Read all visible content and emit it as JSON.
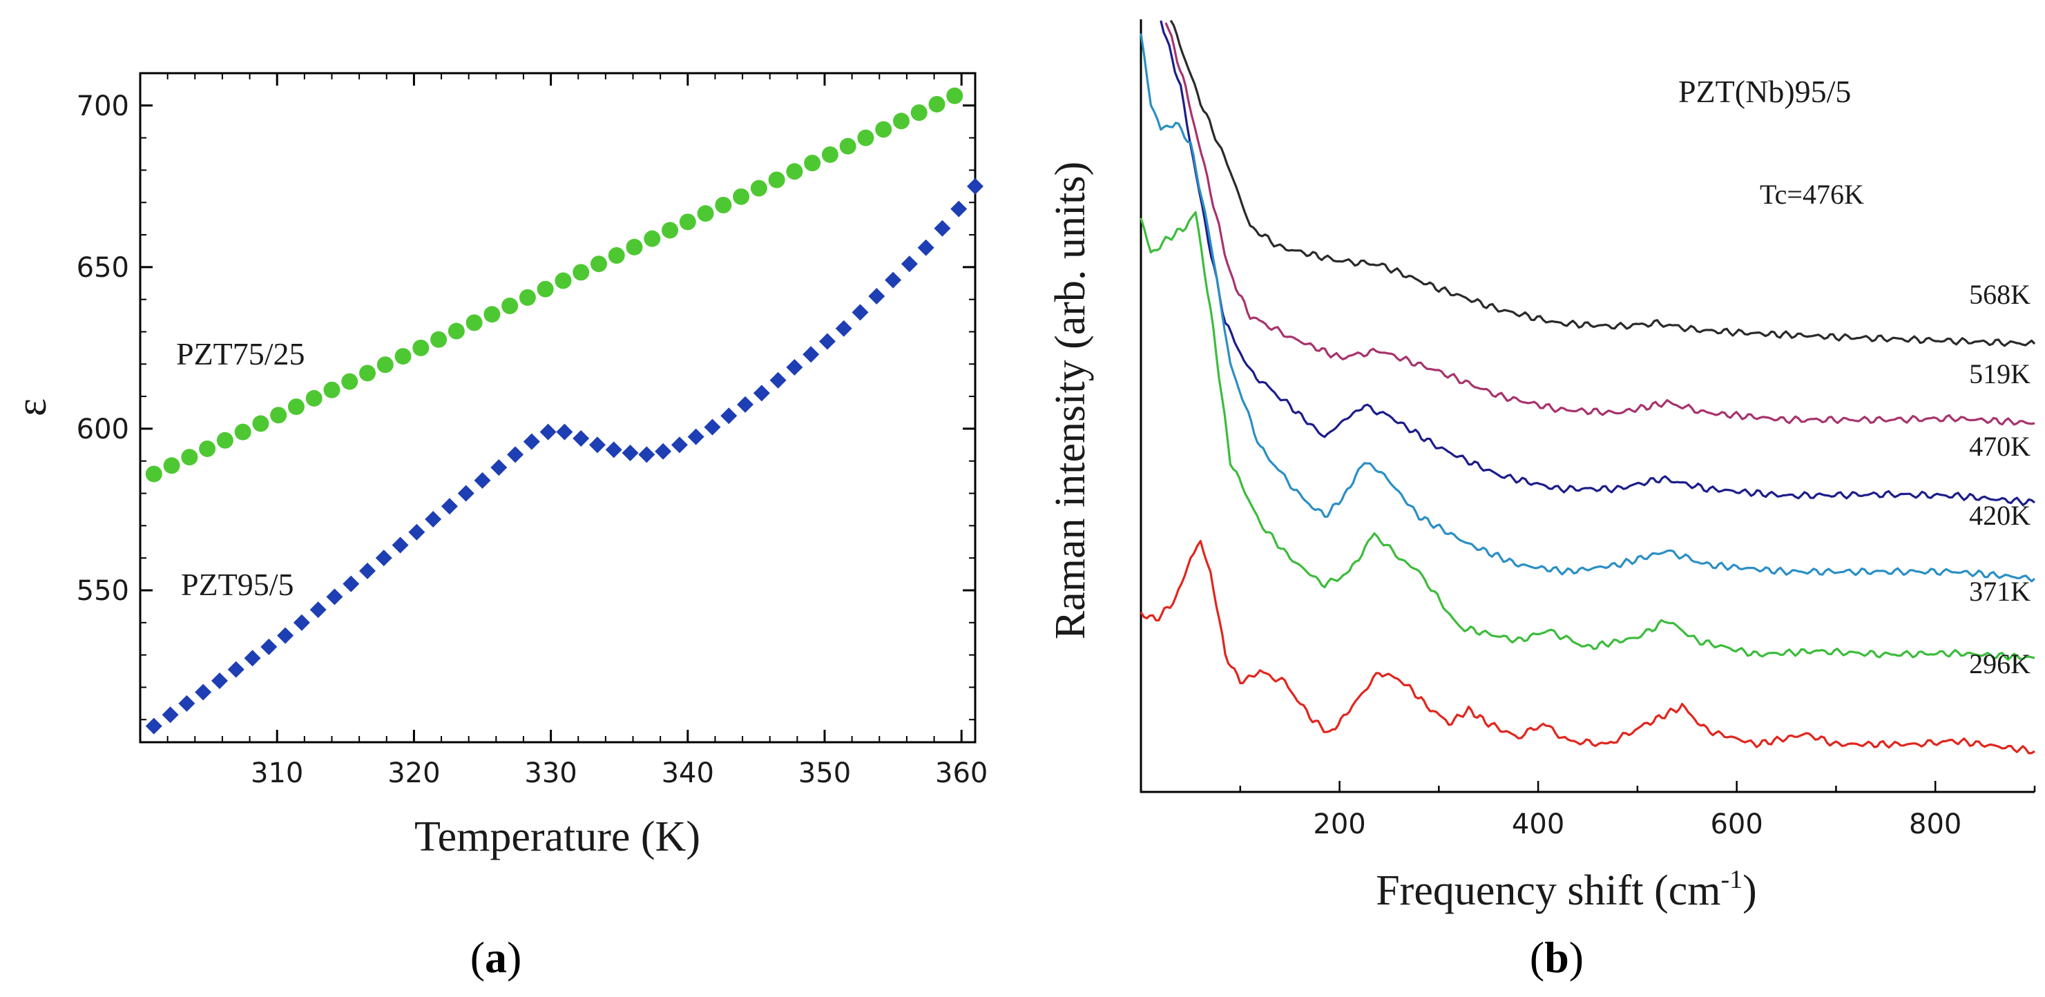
{
  "chart_data": [
    {
      "panel": "(a)",
      "panel_letter": "a",
      "type": "scatter",
      "xlabel": "Temperature (K)",
      "ylabel": "ε",
      "xlim": [
        300,
        361
      ],
      "ylim": [
        503,
        710
      ],
      "xticks": [
        310,
        320,
        330,
        340,
        350,
        360
      ],
      "yticks": [
        550,
        600,
        650,
        700
      ],
      "series": [
        {
          "name": "PZT75/25",
          "color": "#4ec832",
          "marker": "circle",
          "points": [
            [
              301,
              586
            ],
            [
              302.3,
              588.6
            ],
            [
              303.6,
              591.2
            ],
            [
              304.9,
              593.8
            ],
            [
              306.2,
              596.4
            ],
            [
              307.5,
              599
            ],
            [
              308.8,
              601.6
            ],
            [
              310.1,
              604.2
            ],
            [
              311.4,
              606.8
            ],
            [
              312.7,
              609.4
            ],
            [
              314,
              612
            ],
            [
              315.3,
              614.6
            ],
            [
              316.6,
              617.2
            ],
            [
              317.9,
              619.8
            ],
            [
              319.2,
              622.4
            ],
            [
              320.5,
              625
            ],
            [
              321.8,
              627.6
            ],
            [
              323.1,
              630.2
            ],
            [
              324.4,
              632.8
            ],
            [
              325.7,
              635.4
            ],
            [
              327,
              638
            ],
            [
              328.3,
              640.6
            ],
            [
              329.6,
              643.2
            ],
            [
              330.9,
              645.8
            ],
            [
              332.2,
              648.4
            ],
            [
              333.5,
              651
            ],
            [
              334.8,
              653.6
            ],
            [
              336.1,
              656.2
            ],
            [
              337.4,
              658.8
            ],
            [
              338.7,
              661.4
            ],
            [
              340,
              664
            ],
            [
              341.3,
              666.6
            ],
            [
              342.6,
              669.2
            ],
            [
              343.9,
              671.8
            ],
            [
              345.2,
              674.4
            ],
            [
              346.5,
              677
            ],
            [
              347.8,
              679.6
            ],
            [
              349.1,
              682.2
            ],
            [
              350.4,
              684.8
            ],
            [
              351.7,
              687.4
            ],
            [
              353,
              690
            ],
            [
              354.3,
              692.6
            ],
            [
              355.6,
              695.2
            ],
            [
              356.9,
              697.8
            ],
            [
              358.2,
              700.4
            ],
            [
              359.5,
              703
            ]
          ]
        },
        {
          "name": "PZT95/5",
          "color": "#1e3eb4",
          "marker": "diamond",
          "points": [
            [
              301,
              508
            ],
            [
              302.2,
              511.5
            ],
            [
              303.4,
              515
            ],
            [
              304.6,
              518.5
            ],
            [
              305.8,
              522
            ],
            [
              307,
              525.5
            ],
            [
              308.2,
              529
            ],
            [
              309.4,
              532.5
            ],
            [
              310.6,
              536
            ],
            [
              311.8,
              540
            ],
            [
              313,
              544
            ],
            [
              314.2,
              548
            ],
            [
              315.4,
              552
            ],
            [
              316.6,
              556
            ],
            [
              317.8,
              560
            ],
            [
              319,
              564
            ],
            [
              320.2,
              568
            ],
            [
              321.4,
              572
            ],
            [
              322.6,
              576
            ],
            [
              323.8,
              580
            ],
            [
              325,
              584
            ],
            [
              326.2,
              588
            ],
            [
              327.4,
              592
            ],
            [
              328.6,
              596
            ],
            [
              329.8,
              599
            ],
            [
              331,
              599
            ],
            [
              332.2,
              597
            ],
            [
              333.4,
              595
            ],
            [
              334.6,
              593.5
            ],
            [
              335.8,
              592.5
            ],
            [
              337,
              592
            ],
            [
              338.2,
              593
            ],
            [
              339.4,
              595
            ],
            [
              340.6,
              597.5
            ],
            [
              341.8,
              600.5
            ],
            [
              343,
              604
            ],
            [
              344.2,
              607.5
            ],
            [
              345.4,
              611
            ],
            [
              346.6,
              615
            ],
            [
              347.8,
              619
            ],
            [
              349,
              623
            ],
            [
              350.2,
              627
            ],
            [
              351.4,
              631
            ],
            [
              352.6,
              636
            ],
            [
              353.8,
              641
            ],
            [
              355,
              646
            ],
            [
              356.2,
              651
            ],
            [
              357.4,
              656
            ],
            [
              358.6,
              662
            ],
            [
              359.8,
              668
            ],
            [
              361,
              675
            ]
          ]
        }
      ],
      "annotations": [
        "PZT75/25",
        "PZT95/5"
      ]
    },
    {
      "panel": "(b)",
      "panel_letter": "b",
      "type": "line",
      "xlabel": "Frequency shift (cm",
      "xlabel_sup": "-1",
      "xlabel_end": ")",
      "ylabel": "Raman intensity (arb. units)",
      "xlim": [
        0,
        900
      ],
      "xticks": [
        200,
        400,
        600,
        800
      ],
      "y_scale": "arbitrary, vertically offset spectra",
      "annotations": [
        "PZT(Nb)95/5",
        "Tc=476K"
      ],
      "series": [
        {
          "name": "568K",
          "color": "#2a2a2a",
          "label_y": 440,
          "points": [
            [
              30,
              0
            ],
            [
              60,
              120
            ],
            [
              90,
              220
            ],
            [
              110,
              300
            ],
            [
              140,
              330
            ],
            [
              200,
              350
            ],
            [
              240,
              355
            ],
            [
              300,
              390
            ],
            [
              360,
              420
            ],
            [
              420,
              440
            ],
            [
              480,
              445
            ],
            [
              520,
              440
            ],
            [
              560,
              450
            ],
            [
              620,
              455
            ],
            [
              700,
              460
            ],
            [
              800,
              465
            ],
            [
              900,
              470
            ]
          ]
        },
        {
          "name": "519K",
          "color": "#a8336e",
          "label_y": 555,
          "points": [
            [
              25,
              0
            ],
            [
              45,
              100
            ],
            [
              70,
              250
            ],
            [
              90,
              370
            ],
            [
              110,
              430
            ],
            [
              150,
              460
            ],
            [
              200,
              490
            ],
            [
              240,
              480
            ],
            [
              300,
              510
            ],
            [
              360,
              545
            ],
            [
              420,
              565
            ],
            [
              480,
              570
            ],
            [
              530,
              555
            ],
            [
              570,
              570
            ],
            [
              650,
              580
            ],
            [
              750,
              580
            ],
            [
              820,
              578
            ],
            [
              900,
              585
            ]
          ]
        },
        {
          "name": "470K",
          "color": "#1c1d8a",
          "label_y": 660,
          "points": [
            [
              20,
              0
            ],
            [
              40,
              100
            ],
            [
              65,
              300
            ],
            [
              85,
              440
            ],
            [
              110,
              510
            ],
            [
              150,
              560
            ],
            [
              185,
              605
            ],
            [
              205,
              580
            ],
            [
              225,
              560
            ],
            [
              250,
              575
            ],
            [
              300,
              620
            ],
            [
              360,
              660
            ],
            [
              420,
              680
            ],
            [
              480,
              680
            ],
            [
              525,
              665
            ],
            [
              570,
              680
            ],
            [
              650,
              690
            ],
            [
              750,
              688
            ],
            [
              820,
              690
            ],
            [
              900,
              700
            ]
          ]
        },
        {
          "name": "420K",
          "color": "#2a8fc4",
          "label_y": 760,
          "points": [
            [
              0,
              20
            ],
            [
              10,
              120
            ],
            [
              20,
              160
            ],
            [
              35,
              150
            ],
            [
              50,
              180
            ],
            [
              70,
              320
            ],
            [
              90,
              500
            ],
            [
              120,
              620
            ],
            [
              160,
              690
            ],
            [
              185,
              720
            ],
            [
              205,
              690
            ],
            [
              225,
              640
            ],
            [
              245,
              660
            ],
            [
              280,
              720
            ],
            [
              330,
              760
            ],
            [
              380,
              790
            ],
            [
              430,
              800
            ],
            [
              480,
              790
            ],
            [
              530,
              770
            ],
            [
              570,
              790
            ],
            [
              650,
              800
            ],
            [
              750,
              800
            ],
            [
              820,
              800
            ],
            [
              900,
              810
            ]
          ]
        },
        {
          "name": "371K",
          "color": "#3cbc3c",
          "label_y": 870,
          "points": [
            [
              0,
              290
            ],
            [
              10,
              340
            ],
            [
              25,
              320
            ],
            [
              45,
              300
            ],
            [
              55,
              280
            ],
            [
              70,
              420
            ],
            [
              90,
              640
            ],
            [
              120,
              730
            ],
            [
              150,
              780
            ],
            [
              185,
              820
            ],
            [
              210,
              800
            ],
            [
              235,
              745
            ],
            [
              260,
              780
            ],
            [
              280,
              800
            ],
            [
              320,
              880
            ],
            [
              380,
              900
            ],
            [
              410,
              885
            ],
            [
              450,
              910
            ],
            [
              500,
              895
            ],
            [
              530,
              870
            ],
            [
              560,
              900
            ],
            [
              620,
              920
            ],
            [
              680,
              915
            ],
            [
              750,
              920
            ],
            [
              820,
              918
            ],
            [
              900,
              925
            ]
          ]
        },
        {
          "name": "296K",
          "color": "#e0261e",
          "label_y": 975,
          "points": [
            [
              0,
              860
            ],
            [
              15,
              870
            ],
            [
              35,
              840
            ],
            [
              50,
              780
            ],
            [
              60,
              760
            ],
            [
              70,
              800
            ],
            [
              85,
              920
            ],
            [
              100,
              960
            ],
            [
              120,
              945
            ],
            [
              145,
              960
            ],
            [
              170,
              1010
            ],
            [
              190,
              1035
            ],
            [
              210,
              1000
            ],
            [
              240,
              945
            ],
            [
              265,
              960
            ],
            [
              285,
              990
            ],
            [
              310,
              1020
            ],
            [
              330,
              1000
            ],
            [
              350,
              1020
            ],
            [
              380,
              1040
            ],
            [
              405,
              1020
            ],
            [
              430,
              1045
            ],
            [
              470,
              1050
            ],
            [
              510,
              1020
            ],
            [
              545,
              995
            ],
            [
              570,
              1030
            ],
            [
              620,
              1050
            ],
            [
              670,
              1035
            ],
            [
              700,
              1050
            ],
            [
              780,
              1050
            ],
            [
              820,
              1045
            ],
            [
              900,
              1060
            ]
          ]
        }
      ]
    }
  ]
}
